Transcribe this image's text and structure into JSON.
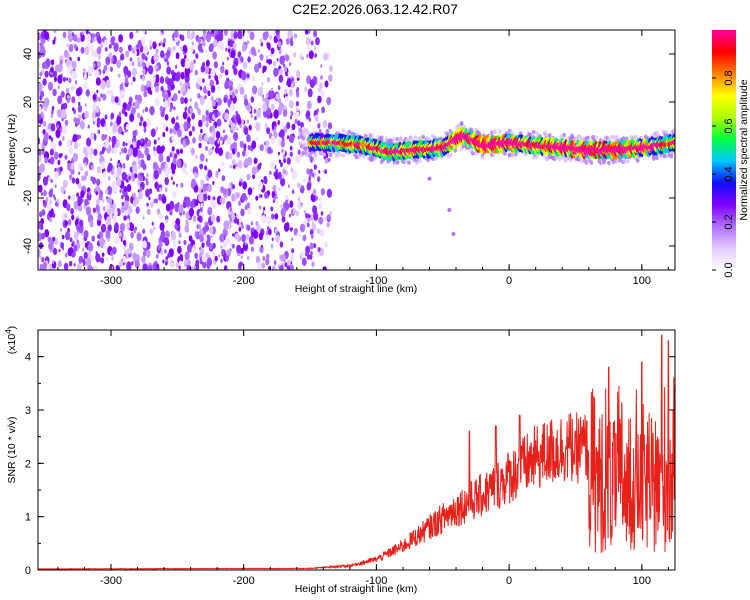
{
  "title": "C2E2.2026.063.12.42.R07",
  "colors": {
    "purple": "#7f00ff",
    "snr_line": "#e8201a",
    "colormap": [
      "#ffffff",
      "#e2c8ff",
      "#b070ff",
      "#7f00ff",
      "#1010ff",
      "#00c8ff",
      "#00ff40",
      "#b0ff00",
      "#ffff00",
      "#ff8000",
      "#ff0000",
      "#ff00a0"
    ]
  },
  "chart_data": [
    {
      "type": "heatmap",
      "title": "C2E2.2026.063.12.42.R07",
      "xlabel": "Height of straight line (km)",
      "ylabel": "Frequency (Hz)",
      "xlim": [
        -355,
        125
      ],
      "ylim": [
        -50,
        50
      ],
      "x_ticks": [
        -300,
        -200,
        -100,
        0,
        100
      ],
      "y_ticks": [
        40,
        20,
        0,
        -20,
        -40
      ],
      "x_tick_labels": [
        "-300",
        "-200",
        "-100",
        "0",
        "100"
      ],
      "y_tick_labels": [
        "40",
        "20",
        "0",
        "-20",
        "-40"
      ],
      "noise_region_x": [
        -355,
        -140
      ],
      "signal_ridge": {
        "x": [
          -150,
          -130,
          -110,
          -90,
          -70,
          -50,
          -35,
          -20,
          0,
          20,
          40,
          60,
          80,
          100,
          125
        ],
        "y": [
          3,
          3,
          2,
          -1,
          0,
          1,
          6,
          2,
          3,
          2,
          1,
          0,
          0,
          1,
          3
        ],
        "peak_amplitude": [
          0.3,
          0.4,
          0.45,
          0.5,
          0.55,
          0.6,
          0.85,
          0.9,
          0.85,
          0.6,
          0.9,
          0.95,
          0.9,
          0.7,
          0.4
        ]
      },
      "colorbar": {
        "label": "Normalized spectral amplitude",
        "range": [
          0.0,
          1.0
        ],
        "ticks": [
          0.0,
          0.2,
          0.4,
          0.6,
          0.8
        ],
        "tick_labels": [
          "0.0",
          "0.2",
          "0.4",
          "0.6",
          "0.8"
        ]
      }
    },
    {
      "type": "line",
      "xlabel": "Height of straight line (km)",
      "ylabel": "SNR (10 * v/v)",
      "y_multiplier": "(x10",
      "y_multiplier_exp": "4",
      "y_multiplier_close": ")",
      "xlim": [
        -355,
        125
      ],
      "ylim": [
        0,
        4.5
      ],
      "x_ticks": [
        -300,
        -200,
        -100,
        0,
        100
      ],
      "y_ticks": [
        0,
        1,
        2,
        3,
        4
      ],
      "x_tick_labels": [
        "-300",
        "-200",
        "-100",
        "0",
        "100"
      ],
      "y_tick_labels": [
        "0",
        "1",
        "2",
        "3",
        "4"
      ],
      "envelope": {
        "x": [
          -355,
          -150,
          -120,
          -100,
          -80,
          -60,
          -40,
          -20,
          0,
          20,
          40,
          60,
          70,
          80,
          100,
          125
        ],
        "y": [
          0.02,
          0.03,
          0.08,
          0.2,
          0.45,
          0.8,
          1.15,
          1.4,
          1.75,
          2.1,
          2.3,
          2.3,
          2.0,
          2.0,
          2.0,
          2.0
        ]
      },
      "spikes": {
        "x": [
          -30,
          -10,
          8,
          30,
          50,
          75,
          100,
          115,
          120
        ],
        "y": [
          2.6,
          2.7,
          2.9,
          2.5,
          2.6,
          3.8,
          3.9,
          4.4,
          4.3
        ]
      }
    }
  ]
}
